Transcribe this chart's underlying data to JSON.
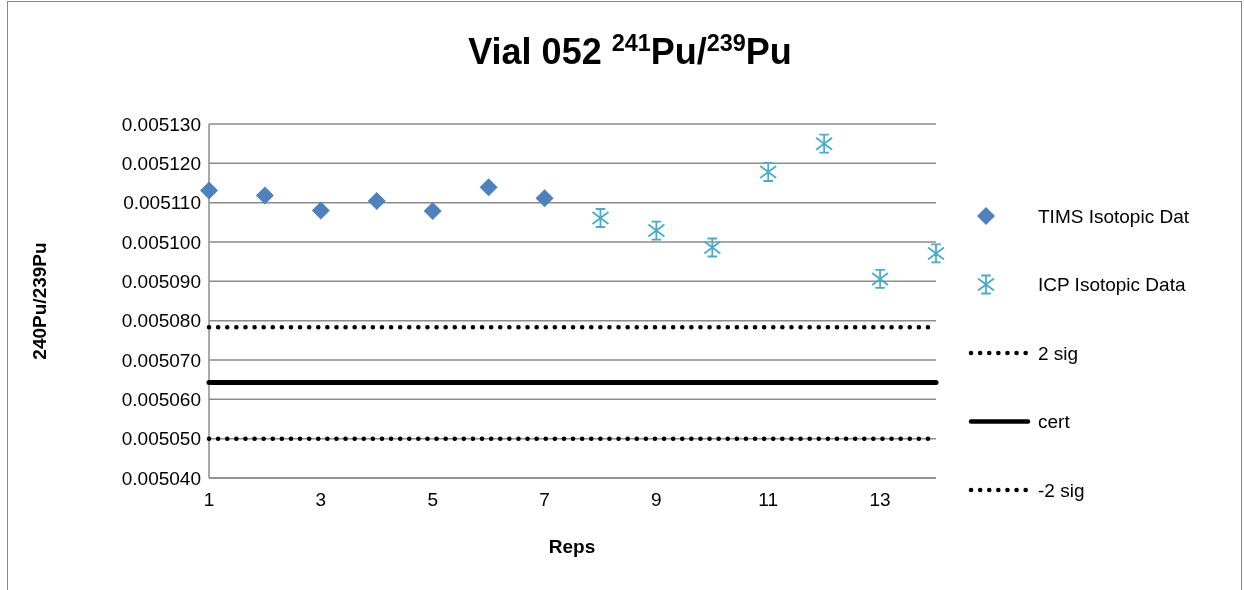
{
  "chart_data": {
    "type": "scatter",
    "title": "Vial 052 $^{241}$Pu/$^{239}$Pu",
    "xlabel": "Reps",
    "ylabel": "240Pu/239Pu",
    "series": [
      {
        "name": "TIMS Isotopic Dat",
        "color": "#4f81bd",
        "marker": "diamond",
        "x": [
          1,
          2,
          3,
          4,
          5,
          6,
          7
        ],
        "values": [
          0.0051131,
          0.0051118,
          0.005108,
          0.0051104,
          0.0051079,
          0.0051139,
          0.0051111
        ]
      },
      {
        "name": "ICP Isotopic Data",
        "color": "#4bacc6",
        "marker": "cross",
        "x": [
          8,
          9,
          10,
          11,
          12,
          13,
          14
        ],
        "values": [
          0.0051061,
          0.0051029,
          0.0050986,
          0.0051178,
          0.005125,
          0.0050906,
          0.0050971
        ]
      },
      {
        "name": "2 sig",
        "type": "line",
        "color": "#000000",
        "line_style": "dotted",
        "x": [
          1,
          14
        ],
        "values": [
          0.0050783,
          0.0050783
        ]
      },
      {
        "name": "cert",
        "type": "line",
        "color": "#000000",
        "line_style": "solid",
        "x": [
          1,
          14
        ],
        "values": [
          0.0050643,
          0.0050643
        ]
      },
      {
        "name": "-2 sig",
        "type": "line",
        "color": "#000000",
        "line_style": "dotted",
        "x": [
          1,
          14
        ],
        "values": [
          0.00505,
          0.00505
        ]
      }
    ],
    "xlim": [
      1,
      14
    ],
    "xticks": [
      1,
      3,
      5,
      7,
      9,
      11,
      13
    ],
    "ylim": [
      0.00504,
      0.00513
    ],
    "yticks": [
      {
        "value": 0.00504,
        "label": "0.005040"
      },
      {
        "value": 0.00505,
        "label": "0.005050"
      },
      {
        "value": 0.00506,
        "label": "0.005060"
      },
      {
        "value": 0.00507,
        "label": "0.005070"
      },
      {
        "value": 0.00508,
        "label": "0.005080"
      },
      {
        "value": 0.00509,
        "label": "0.005090"
      },
      {
        "value": 0.0051,
        "label": "0.005100"
      },
      {
        "value": 0.00511,
        "label": "0.005110"
      },
      {
        "value": 0.00512,
        "label": "0.005120"
      },
      {
        "value": 0.00513,
        "label": "0.005130"
      }
    ],
    "grid": "y",
    "legend": "right"
  }
}
